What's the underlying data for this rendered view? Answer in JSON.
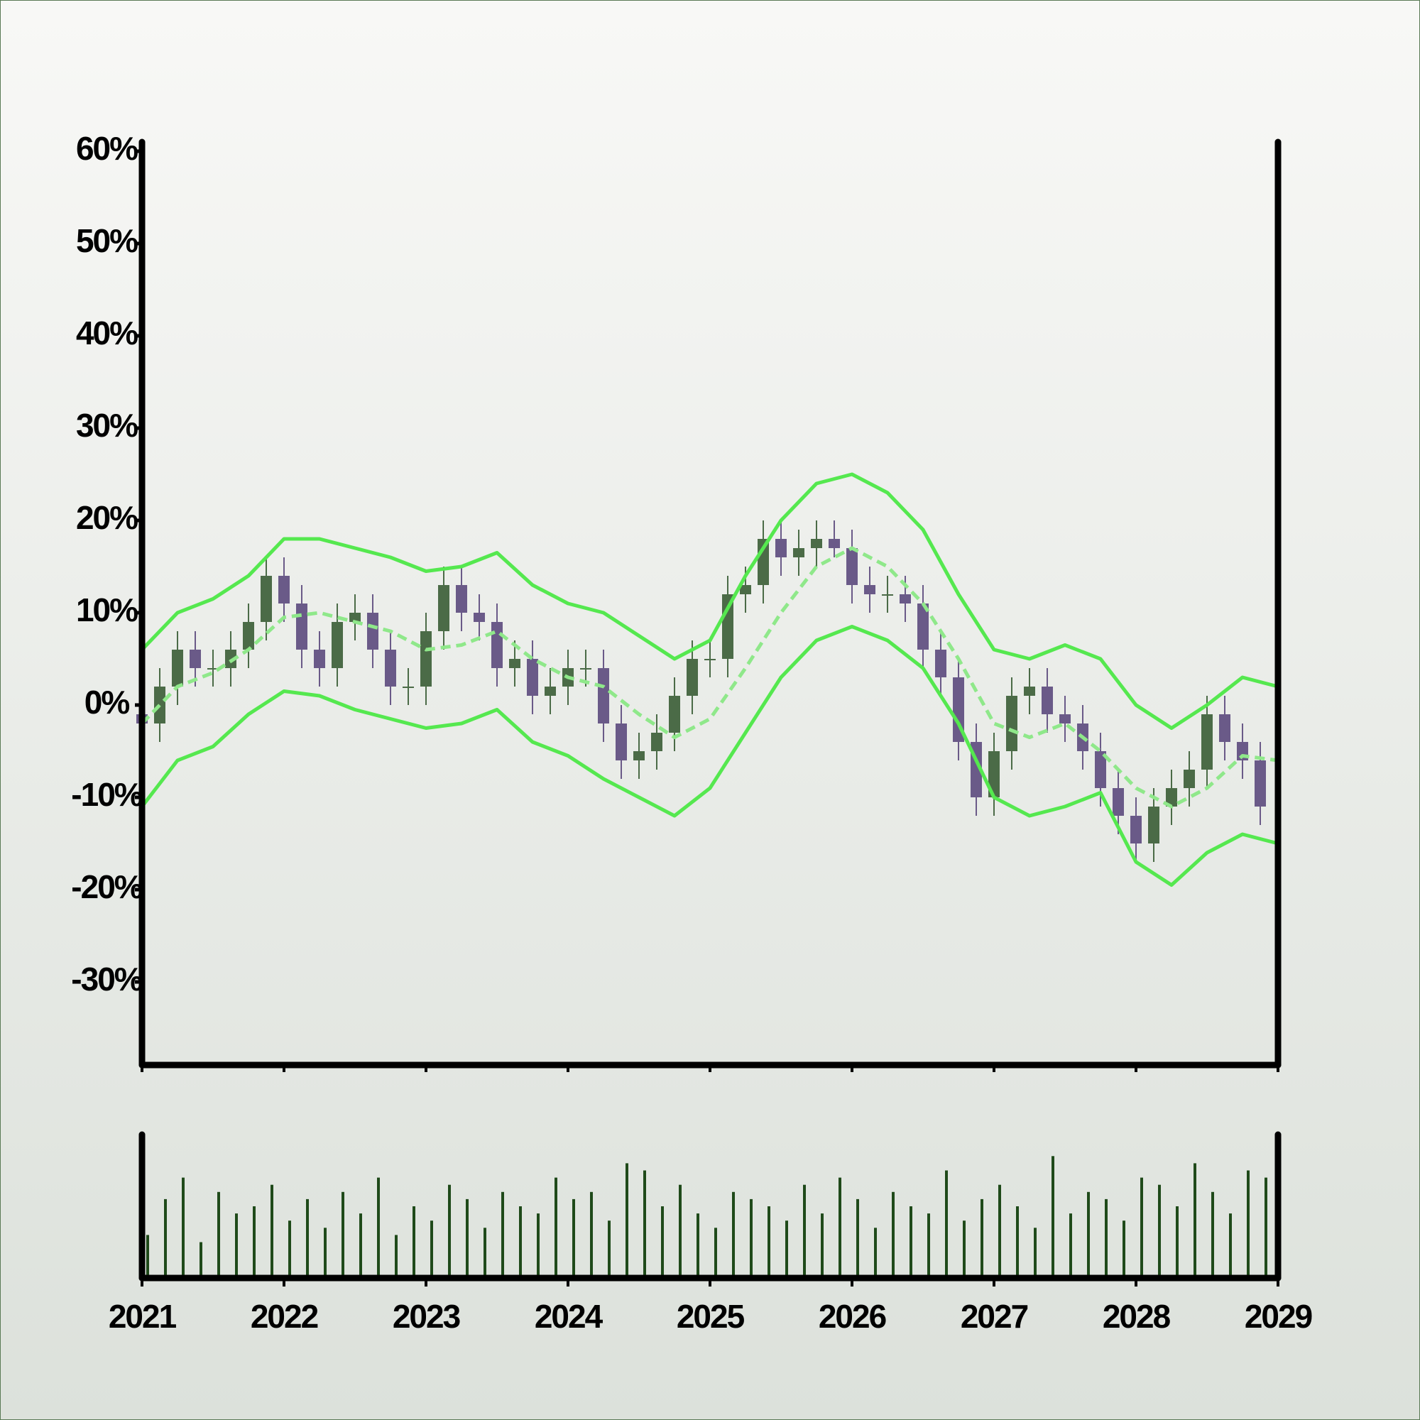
{
  "chart_data": [
    {
      "type": "candlestick",
      "x": [
        2021,
        2021.125,
        2021.25,
        2021.375,
        2021.5,
        2021.625,
        2021.75,
        2021.875,
        2022,
        2022.125,
        2022.25,
        2022.375,
        2022.5,
        2022.625,
        2022.75,
        2022.875,
        2023,
        2023.125,
        2023.25,
        2023.375,
        2023.5,
        2023.625,
        2023.75,
        2023.875,
        2024,
        2024.125,
        2024.25,
        2024.375,
        2024.5,
        2024.625,
        2024.75,
        2024.875,
        2025,
        2025.125,
        2025.25,
        2025.375,
        2025.5,
        2025.625,
        2025.75,
        2025.875,
        2026,
        2026.125,
        2026.25,
        2026.375,
        2026.5,
        2026.625,
        2026.75,
        2026.875,
        2027,
        2027.125,
        2027.25,
        2027.375,
        2027.5,
        2027.625,
        2027.75,
        2027.875,
        2028,
        2028.125,
        2028.25,
        2028.375,
        2028.5,
        2028.625,
        2028.75,
        2028.875
      ],
      "open": [
        -1,
        -2,
        2,
        6,
        4,
        4,
        6,
        9,
        14,
        11,
        6,
        4,
        9,
        10,
        6,
        2,
        2,
        8,
        13,
        10,
        9,
        4,
        5,
        1,
        2,
        4,
        4,
        -2,
        -6,
        -5,
        -3,
        1,
        5,
        5,
        12,
        13,
        18,
        16,
        17,
        18,
        17,
        13,
        12,
        12,
        11,
        6,
        3,
        -4,
        -10,
        -5,
        1,
        2,
        -1,
        -2,
        -5,
        -9,
        -12,
        -15,
        -11,
        -9,
        -7,
        -1,
        -4,
        -6
      ],
      "high": [
        1,
        4,
        8,
        8,
        6,
        8,
        11,
        16,
        16,
        13,
        8,
        11,
        12,
        12,
        8,
        4,
        10,
        15,
        15,
        12,
        11,
        7,
        7,
        4,
        6,
        6,
        6,
        0,
        -3,
        -1,
        3,
        7,
        7,
        14,
        15,
        20,
        20,
        19,
        20,
        20,
        19,
        15,
        14,
        14,
        13,
        8,
        5,
        -2,
        -3,
        3,
        4,
        4,
        1,
        0,
        -3,
        -7,
        -10,
        -9,
        -7,
        -5,
        1,
        1,
        -2,
        -4
      ],
      "low": [
        -4,
        -4,
        0,
        2,
        2,
        2,
        4,
        7,
        9,
        4,
        2,
        2,
        7,
        4,
        0,
        0,
        0,
        6,
        8,
        7,
        2,
        2,
        -1,
        -1,
        0,
        2,
        -4,
        -8,
        -8,
        -7,
        -5,
        -1,
        3,
        3,
        10,
        11,
        14,
        14,
        15,
        16,
        11,
        10,
        10,
        9,
        4,
        1,
        -6,
        -12,
        -12,
        -7,
        -1,
        -3,
        -4,
        -7,
        -11,
        -14,
        -17,
        -17,
        -13,
        -11,
        -9,
        -6,
        -8,
        -13
      ],
      "close": [
        -2,
        2,
        6,
        4,
        4,
        6,
        9,
        14,
        11,
        6,
        4,
        9,
        10,
        6,
        2,
        2,
        8,
        13,
        10,
        9,
        4,
        5,
        1,
        2,
        4,
        4,
        -2,
        -6,
        -5,
        -3,
        1,
        5,
        5,
        12,
        13,
        18,
        16,
        17,
        18,
        17,
        13,
        12,
        12,
        11,
        6,
        3,
        -4,
        -10,
        -5,
        1,
        2,
        -1,
        -2,
        -5,
        -9,
        -12,
        -15,
        -11,
        -9,
        -7,
        -1,
        -4,
        -6,
        -11
      ],
      "up_color": "#4b6b47",
      "down_color": "#6a5a88",
      "bands": {
        "x": [
          2021,
          2021.25,
          2021.5,
          2021.75,
          2022,
          2022.25,
          2022.5,
          2022.75,
          2023,
          2023.25,
          2023.5,
          2023.75,
          2024,
          2024.25,
          2024.5,
          2024.75,
          2025,
          2025.25,
          2025.5,
          2025.75,
          2026,
          2026.25,
          2026.5,
          2026.75,
          2027,
          2027.25,
          2027.5,
          2027.75,
          2028,
          2028.25,
          2028.5,
          2028.75,
          2029
        ],
        "upper": [
          6,
          10,
          11.5,
          14,
          18,
          18,
          17,
          16,
          14.5,
          15,
          16.5,
          13,
          11,
          10,
          7.5,
          5,
          7,
          14,
          20,
          24,
          25,
          23,
          19,
          12,
          6,
          5,
          6.5,
          5,
          0,
          -2.5,
          0,
          3,
          2
        ],
        "middle": [
          -2,
          2,
          3.5,
          6,
          9.5,
          10,
          9,
          8,
          6,
          6.5,
          8,
          5,
          3,
          2,
          -1,
          -3.5,
          -1.5,
          4,
          10,
          15,
          17,
          15,
          11,
          5,
          -2,
          -3.5,
          -2,
          -5,
          -9,
          -11,
          -9,
          -5.5,
          -6
        ],
        "lower": [
          -11,
          -6,
          -4.5,
          -1,
          1.5,
          1,
          -0.5,
          -1.5,
          -2.5,
          -2,
          -0.5,
          -4,
          -5.5,
          -8,
          -10,
          -12,
          -9,
          -3,
          3,
          7,
          8.5,
          7,
          4,
          -2,
          -10,
          -12,
          -11,
          -9.5,
          -17,
          -19.5,
          -16,
          -14,
          -15
        ],
        "color": "#55e84f",
        "middle_color": "#8fe88a",
        "middle_style": "dashed"
      },
      "xlim": [
        2021,
        2029
      ],
      "xticks": [
        2021,
        2022,
        2023,
        2024,
        2025,
        2026,
        2027,
        2028,
        2029
      ],
      "ylim": [
        -39,
        61
      ],
      "yticks": [
        {
          "value": 60,
          "label": "60%"
        },
        {
          "value": 50,
          "label": "50%"
        },
        {
          "value": 40,
          "label": "40%"
        },
        {
          "value": 30,
          "label": "30%"
        },
        {
          "value": 20,
          "label": "20%"
        },
        {
          "value": 10,
          "label": "10%"
        },
        {
          "value": 0,
          "label": "0%"
        },
        {
          "value": -10,
          "label": "-10%"
        },
        {
          "value": -20,
          "label": "-20%"
        },
        {
          "value": -30,
          "label": "-30%"
        }
      ]
    },
    {
      "type": "bar",
      "x": [
        2021,
        2021.125,
        2021.25,
        2021.375,
        2021.5,
        2021.625,
        2021.75,
        2021.875,
        2022,
        2022.125,
        2022.25,
        2022.375,
        2022.5,
        2022.625,
        2022.75,
        2022.875,
        2023,
        2023.125,
        2023.25,
        2023.375,
        2023.5,
        2023.625,
        2023.75,
        2023.875,
        2024,
        2024.125,
        2024.25,
        2024.375,
        2024.5,
        2024.625,
        2024.75,
        2024.875,
        2025,
        2025.125,
        2025.25,
        2025.375,
        2025.5,
        2025.625,
        2025.75,
        2025.875,
        2026,
        2026.125,
        2026.25,
        2026.375,
        2026.5,
        2026.625,
        2026.75,
        2026.875,
        2027,
        2027.125,
        2027.25,
        2027.375,
        2027.5,
        2027.625,
        2027.75,
        2027.875,
        2028,
        2028.125,
        2028.25,
        2028.375,
        2028.5,
        2028.625,
        2028.75,
        2028.875
      ],
      "values": [
        30,
        55,
        70,
        25,
        60,
        45,
        50,
        65,
        40,
        55,
        35,
        60,
        45,
        70,
        30,
        50,
        40,
        65,
        55,
        35,
        60,
        50,
        45,
        70,
        55,
        60,
        40,
        80,
        75,
        50,
        65,
        45,
        35,
        60,
        55,
        50,
        40,
        65,
        45,
        70,
        55,
        35,
        60,
        50,
        45,
        75,
        40,
        55,
        65,
        50,
        35,
        85,
        45,
        60,
        55,
        40,
        70,
        65,
        50,
        80,
        60,
        45,
        75,
        70
      ],
      "color": "#1f4a1a",
      "xlim": [
        2021,
        2029
      ],
      "xticks": [
        2021,
        2022,
        2023,
        2024,
        2025,
        2026,
        2027,
        2028,
        2029
      ],
      "ylim": [
        0,
        100
      ]
    }
  ]
}
